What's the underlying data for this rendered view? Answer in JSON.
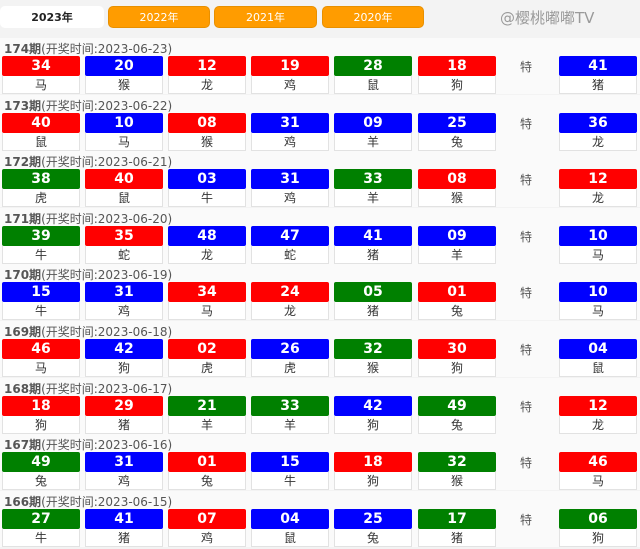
{
  "tabs": [
    {
      "label": "2023年",
      "active": true
    },
    {
      "label": "2022年"
    },
    {
      "label": "2021年"
    },
    {
      "label": "2020年"
    }
  ],
  "colors": {
    "r": "#ff0000",
    "b": "#0000ff",
    "g": "#008000",
    "tab": "#ff9c00"
  },
  "special_label": "特",
  "draws": [
    {
      "period": "174期",
      "time": "(开奖时间:2023-06-23)",
      "balls": [
        [
          "34",
          "马",
          "r"
        ],
        [
          "20",
          "猴",
          "b"
        ],
        [
          "12",
          "龙",
          "r"
        ],
        [
          "19",
          "鸡",
          "r"
        ],
        [
          "28",
          "鼠",
          "g"
        ],
        [
          "18",
          "狗",
          "r"
        ]
      ],
      "special": [
        "41",
        "猪",
        "b"
      ]
    },
    {
      "period": "173期",
      "time": "(开奖时间:2023-06-22)",
      "balls": [
        [
          "40",
          "鼠",
          "r"
        ],
        [
          "10",
          "马",
          "b"
        ],
        [
          "08",
          "猴",
          "r"
        ],
        [
          "31",
          "鸡",
          "b"
        ],
        [
          "09",
          "羊",
          "b"
        ],
        [
          "25",
          "兔",
          "b"
        ]
      ],
      "special": [
        "36",
        "龙",
        "b"
      ]
    },
    {
      "period": "172期",
      "time": "(开奖时间:2023-06-21)",
      "balls": [
        [
          "38",
          "虎",
          "g"
        ],
        [
          "40",
          "鼠",
          "r"
        ],
        [
          "03",
          "牛",
          "b"
        ],
        [
          "31",
          "鸡",
          "b"
        ],
        [
          "33",
          "羊",
          "g"
        ],
        [
          "08",
          "猴",
          "r"
        ]
      ],
      "special": [
        "12",
        "龙",
        "r"
      ]
    },
    {
      "period": "171期",
      "time": "(开奖时间:2023-06-20)",
      "balls": [
        [
          "39",
          "牛",
          "g"
        ],
        [
          "35",
          "蛇",
          "r"
        ],
        [
          "48",
          "龙",
          "b"
        ],
        [
          "47",
          "蛇",
          "b"
        ],
        [
          "41",
          "猪",
          "b"
        ],
        [
          "09",
          "羊",
          "b"
        ]
      ],
      "special": [
        "10",
        "马",
        "b"
      ]
    },
    {
      "period": "170期",
      "time": "(开奖时间:2023-06-19)",
      "balls": [
        [
          "15",
          "牛",
          "b"
        ],
        [
          "31",
          "鸡",
          "b"
        ],
        [
          "34",
          "马",
          "r"
        ],
        [
          "24",
          "龙",
          "r"
        ],
        [
          "05",
          "猪",
          "g"
        ],
        [
          "01",
          "兔",
          "r"
        ]
      ],
      "special": [
        "10",
        "马",
        "b"
      ]
    },
    {
      "period": "169期",
      "time": "(开奖时间:2023-06-18)",
      "balls": [
        [
          "46",
          "马",
          "r"
        ],
        [
          "42",
          "狗",
          "b"
        ],
        [
          "02",
          "虎",
          "r"
        ],
        [
          "26",
          "虎",
          "b"
        ],
        [
          "32",
          "猴",
          "g"
        ],
        [
          "30",
          "狗",
          "r"
        ]
      ],
      "special": [
        "04",
        "鼠",
        "b"
      ]
    },
    {
      "period": "168期",
      "time": "(开奖时间:2023-06-17)",
      "balls": [
        [
          "18",
          "狗",
          "r"
        ],
        [
          "29",
          "猪",
          "r"
        ],
        [
          "21",
          "羊",
          "g"
        ],
        [
          "33",
          "羊",
          "g"
        ],
        [
          "42",
          "狗",
          "b"
        ],
        [
          "49",
          "兔",
          "g"
        ]
      ],
      "special": [
        "12",
        "龙",
        "r"
      ]
    },
    {
      "period": "167期",
      "time": "(开奖时间:2023-06-16)",
      "balls": [
        [
          "49",
          "兔",
          "g"
        ],
        [
          "31",
          "鸡",
          "b"
        ],
        [
          "01",
          "兔",
          "r"
        ],
        [
          "15",
          "牛",
          "b"
        ],
        [
          "18",
          "狗",
          "r"
        ],
        [
          "32",
          "猴",
          "g"
        ]
      ],
      "special": [
        "46",
        "马",
        "r"
      ]
    },
    {
      "period": "166期",
      "time": "(开奖时间:2023-06-15)",
      "balls": [
        [
          "27",
          "牛",
          "g"
        ],
        [
          "41",
          "猪",
          "b"
        ],
        [
          "07",
          "鸡",
          "r"
        ],
        [
          "04",
          "鼠",
          "b"
        ],
        [
          "25",
          "兔",
          "b"
        ],
        [
          "17",
          "猪",
          "g"
        ]
      ],
      "special": [
        "06",
        "狗",
        "g"
      ]
    }
  ],
  "watermark": "@樱桃嘟嘟TV"
}
